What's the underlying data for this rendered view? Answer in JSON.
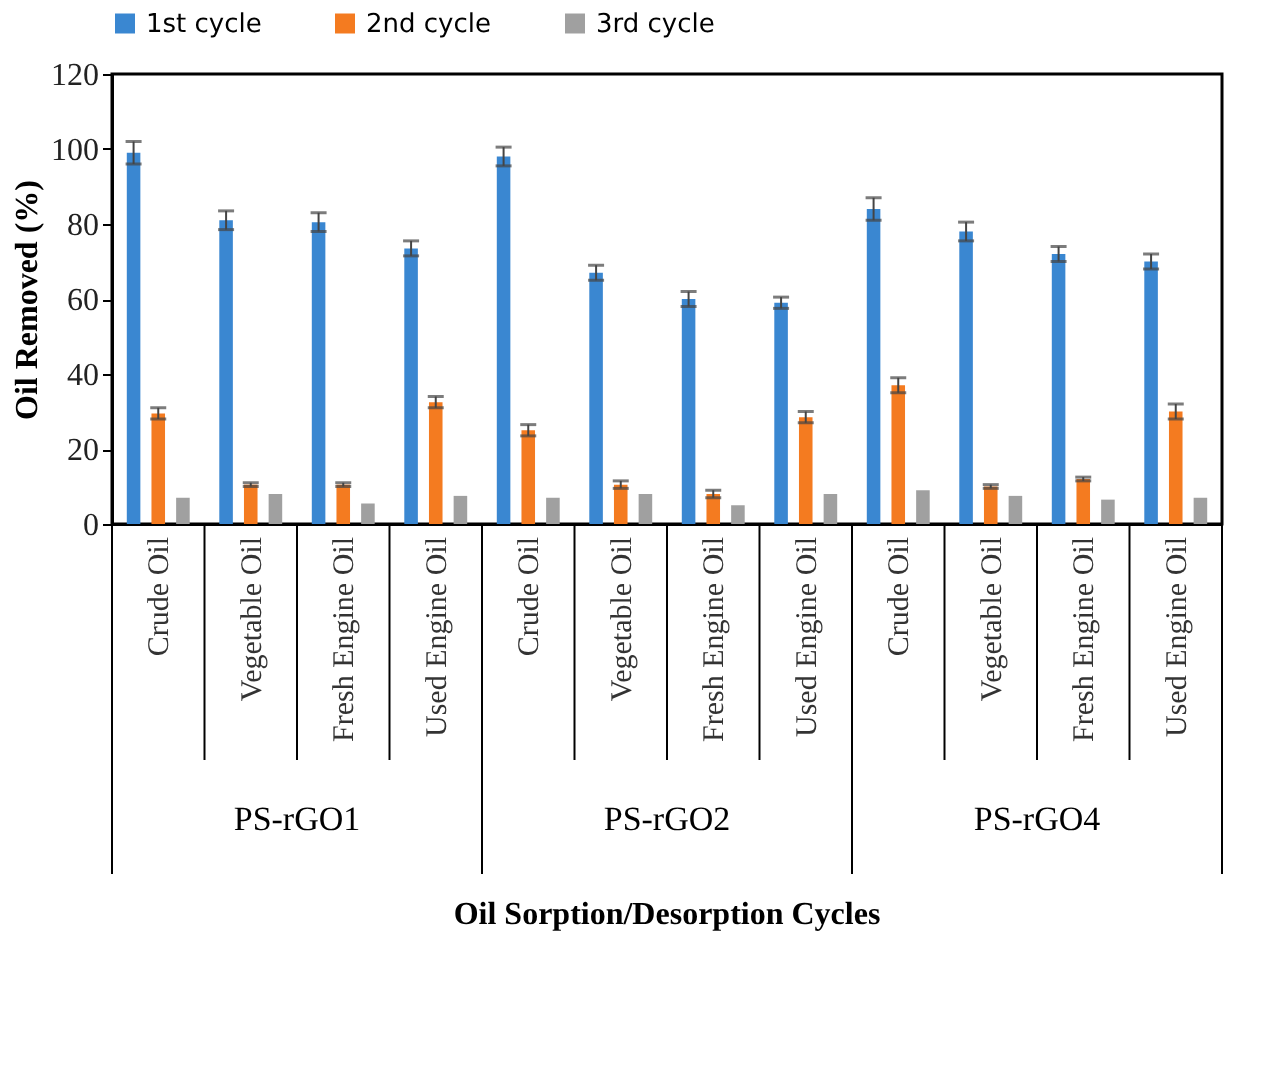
{
  "chart_data": {
    "type": "bar",
    "xlabel": "Oil Sorption/Desorption  Cycles",
    "ylabel": "Oil Removed (%)",
    "categories": [
      "Crude Oil",
      "Vegetable Oil",
      "Fresh Engine Oil",
      "Used Engine Oil",
      "Crude Oil",
      "Vegetable Oil",
      "Fresh Engine Oil",
      "Used Engine Oil",
      "Crude Oil",
      "Vegetable Oil",
      "Fresh Engine Oil",
      "Used Engine Oil"
    ],
    "series": [
      {
        "name": "1st cycle",
        "color": "#3a87d1",
        "values": [
          99,
          81,
          80.5,
          73.5,
          98,
          67,
          60,
          59,
          84,
          78,
          72,
          70
        ],
        "errors": [
          3,
          2.5,
          2.5,
          2,
          2.5,
          2,
          2,
          1.5,
          3,
          2.5,
          2,
          2
        ]
      },
      {
        "name": "2nd cycle",
        "color": "#f47b20",
        "values": [
          29.5,
          10.5,
          10.5,
          32.5,
          25,
          10.5,
          8,
          28.5,
          37,
          10,
          12,
          30
        ],
        "errors": [
          1.5,
          0.5,
          0.5,
          1.5,
          1.5,
          1,
          1,
          1.5,
          2,
          0.5,
          0.5,
          2
        ]
      },
      {
        "name": "3rd cycle",
        "color": "#a0a0a0",
        "values": [
          7,
          8,
          5.5,
          7.5,
          7,
          8,
          5,
          8,
          9,
          7.5,
          6.5,
          7
        ]
      }
    ],
    "annotations": [
      "PS-rGO1",
      "PS-rGO2",
      "PS-rGO4"
    ],
    "ylim": [
      0,
      120
    ],
    "yticks": [
      0,
      20,
      40,
      60,
      80,
      100,
      120
    ],
    "grid": false,
    "legend": "top"
  }
}
